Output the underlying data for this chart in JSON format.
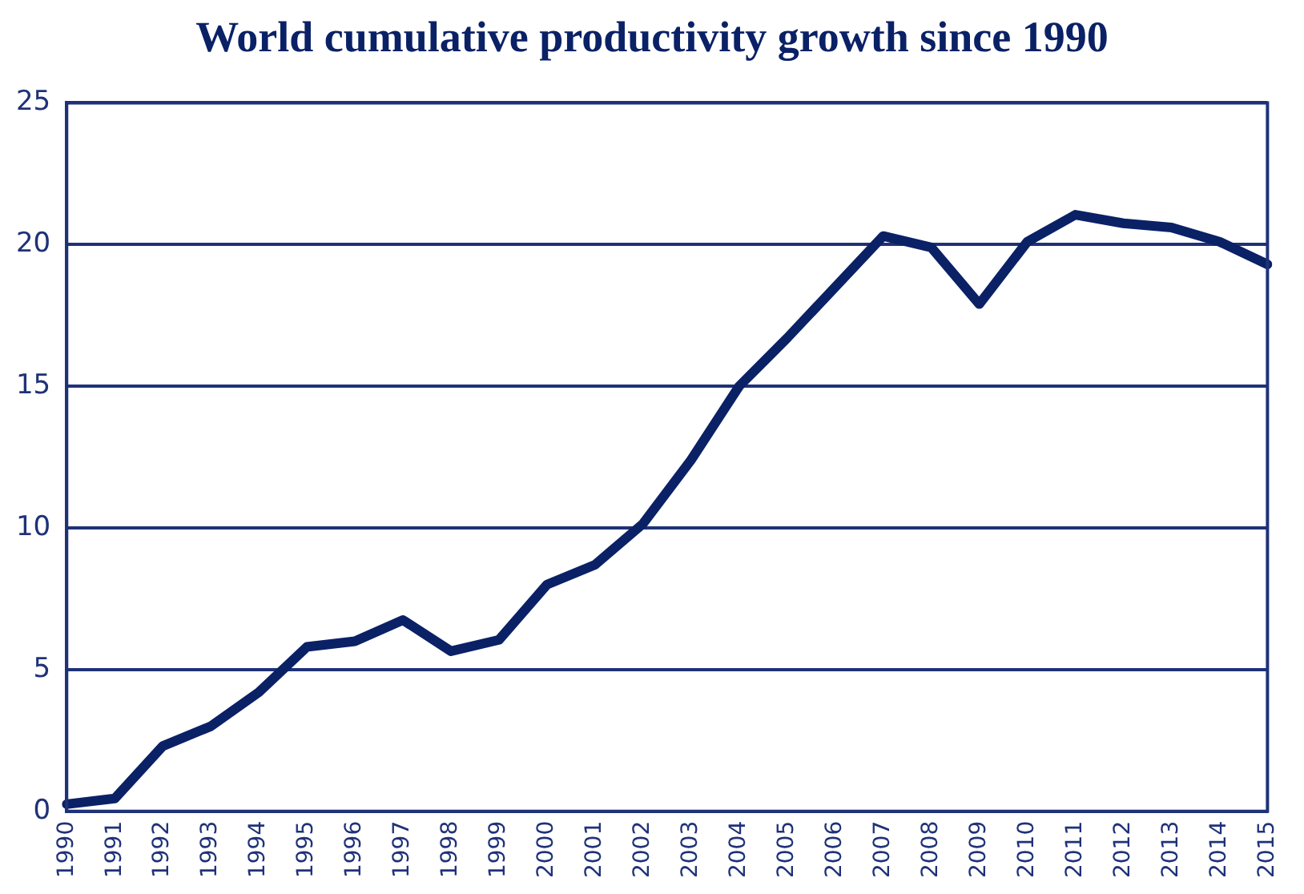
{
  "chart_data": {
    "type": "line",
    "title": "World cumulative productivity growth since 1990",
    "categories": [
      "1990",
      "1991",
      "1992",
      "1993",
      "1994",
      "1995",
      "1996",
      "1997",
      "1998",
      "1999",
      "2000",
      "2001",
      "2002",
      "2003",
      "2004",
      "2005",
      "2006",
      "2007",
      "2008",
      "2009",
      "2010",
      "2011",
      "2012",
      "2013",
      "2014",
      "2015"
    ],
    "series": [
      {
        "color": "#0a2166",
        "values": [
          0.25,
          0.45,
          2.3,
          3.0,
          4.2,
          5.8,
          6.0,
          6.75,
          5.65,
          6.05,
          8.0,
          8.7,
          10.15,
          12.4,
          15.0,
          16.7,
          18.5,
          20.3,
          19.9,
          17.9,
          20.1,
          21.05,
          20.75,
          20.6,
          20.1,
          19.3
        ]
      }
    ],
    "ylim": [
      0,
      25
    ],
    "yticks": [
      0,
      5,
      10,
      15,
      20,
      25
    ],
    "grid": "y",
    "legend": false,
    "marker": "none",
    "line_style": "solid"
  }
}
